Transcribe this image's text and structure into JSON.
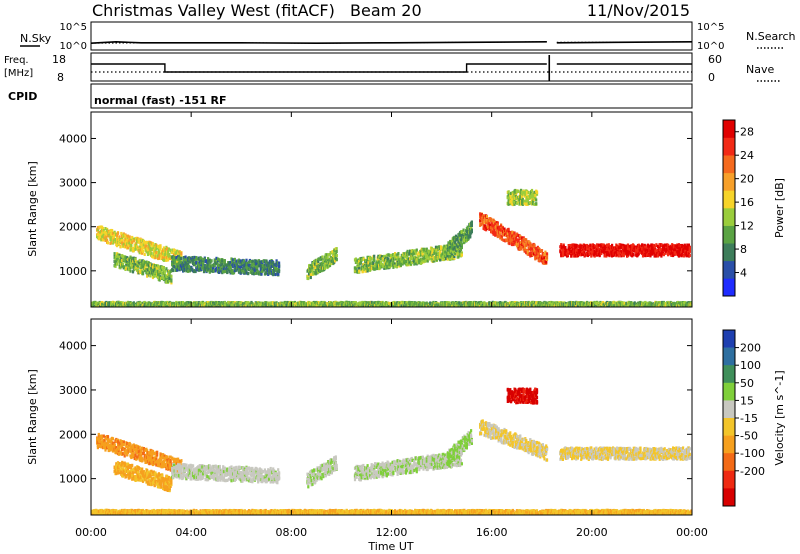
{
  "header": {
    "title": "Christmas Valley West (fitACF)",
    "beam": "Beam 20",
    "date": "11/Nov/2015"
  },
  "noise_panel": {
    "left_label": "N.Sky",
    "right_label": "N.Search",
    "left_ticks": [
      "10^5",
      "10^0"
    ],
    "right_ticks": [
      "10^5",
      "10^0"
    ]
  },
  "freq_panel": {
    "left_label_1": "Freq.",
    "left_label_2": "[MHz]",
    "right_label": "Nave",
    "left_ticks": [
      "18",
      "8"
    ],
    "right_ticks": [
      "60",
      "0"
    ]
  },
  "cpid": {
    "label": "CPID",
    "program": "normal (fast) -151 RF"
  },
  "x_axis": {
    "label": "Time UT",
    "ticks": [
      "00:00",
      "04:00",
      "08:00",
      "12:00",
      "16:00",
      "20:00",
      "00:00"
    ]
  },
  "y_axis": {
    "label": "Slant Range [km]",
    "ticks": [
      "1000",
      "2000",
      "3000",
      "4000"
    ]
  },
  "power_colorbar": {
    "label": "Power [dB]",
    "ticks": [
      "4",
      "8",
      "12",
      "16",
      "20",
      "24",
      "28"
    ],
    "colors": [
      "#1f2cff",
      "#2a4fa8",
      "#3d7d5a",
      "#5aa343",
      "#9acd3c",
      "#f6d42a",
      "#f7a02a",
      "#f56a1e",
      "#f22a16",
      "#e00000"
    ]
  },
  "velocity_colorbar": {
    "label": "Velocity [m s^-1]",
    "ticks": [
      "200",
      "100",
      "50",
      "15",
      "-15",
      "-50",
      "-100",
      "-200"
    ],
    "colors": [
      "#1e3fb0",
      "#2e6fa0",
      "#3f8f5a",
      "#7fcf3a",
      "#c8c8c0",
      "#f3c52a",
      "#f6a01e",
      "#f36a16",
      "#ef2a12",
      "#d80000"
    ]
  },
  "chart_data": [
    {
      "type": "line",
      "panel": "noise",
      "series": [
        {
          "name": "N.Sky",
          "x": [
            0,
            1,
            2,
            3,
            6,
            9,
            12,
            15,
            18.2,
            18.6,
            21,
            24
          ],
          "y": [
            1.2,
            1.5,
            1.3,
            1.3,
            1.3,
            1.2,
            1.3,
            1.4,
            1.5,
            1.3,
            1.4,
            1.5
          ]
        },
        {
          "name": "N.Search",
          "x": [
            0,
            3,
            6,
            9,
            12,
            15,
            18.2,
            18.6,
            21,
            24
          ],
          "y": [
            1.2,
            1.3,
            1.3,
            1.2,
            1.3,
            1.4,
            1.5,
            1.4,
            1.4,
            1.5
          ]
        }
      ],
      "xlim": [
        0,
        24
      ]
    },
    {
      "type": "line",
      "panel": "frequency",
      "series": [
        {
          "name": "Freq.",
          "x": [
            0,
            2.95,
            2.95,
            15,
            15,
            18.2,
            18.6,
            24
          ],
          "y": [
            14.5,
            14.5,
            10.5,
            10.5,
            14.5,
            14.5,
            14.5,
            14.5
          ]
        },
        {
          "name": "Nave",
          "x": [
            0,
            24
          ],
          "y": [
            22,
            22
          ]
        }
      ],
      "xlim": [
        0,
        24
      ]
    },
    {
      "type": "heatmap",
      "panel": "power",
      "xlim": [
        0,
        24
      ],
      "ylim": [
        180,
        4600
      ],
      "zlim": [
        0,
        30
      ],
      "regions": [
        {
          "t_start": 0.2,
          "t_end": 3.6,
          "r_start": 1900,
          "r_end": 1300,
          "value": 16
        },
        {
          "t_start": 0.9,
          "t_end": 3.2,
          "r_start": 1300,
          "r_end": 900,
          "value": 12
        },
        {
          "t_start": 3.2,
          "t_end": 7.5,
          "r_start": 1200,
          "r_end": 1100,
          "value": 8
        },
        {
          "t_start": 8.6,
          "t_end": 9.8,
          "r_start": 1000,
          "r_end": 1400,
          "value": 12
        },
        {
          "t_start": 10.5,
          "t_end": 14.8,
          "r_start": 1150,
          "r_end": 1500,
          "value": 12
        },
        {
          "t_start": 14.2,
          "t_end": 15.2,
          "r_start": 1500,
          "r_end": 2000,
          "value": 10
        },
        {
          "t_start": 15.5,
          "t_end": 18.2,
          "r_start": 2200,
          "r_end": 1300,
          "value": 24
        },
        {
          "t_start": 18.7,
          "t_end": 23.9,
          "r_start": 1500,
          "r_end": 1500,
          "value": 28
        },
        {
          "t_start": 16.6,
          "t_end": 17.8,
          "r_start": 2700,
          "r_end": 2700,
          "value": 14
        },
        {
          "t_start": 0.0,
          "t_end": 24.0,
          "r_start": 260,
          "r_end": 260,
          "value": 12
        }
      ]
    },
    {
      "type": "heatmap",
      "panel": "velocity",
      "xlim": [
        0,
        24
      ],
      "ylim": [
        180,
        4600
      ],
      "zlim": [
        -250,
        250
      ],
      "regions": [
        {
          "t_start": 0.2,
          "t_end": 3.6,
          "r_start": 1900,
          "r_end": 1300,
          "value": -80
        },
        {
          "t_start": 0.9,
          "t_end": 3.2,
          "r_start": 1300,
          "r_end": 900,
          "value": -60
        },
        {
          "t_start": 3.2,
          "t_end": 7.5,
          "r_start": 1200,
          "r_end": 1100,
          "value": 30
        },
        {
          "t_start": 8.6,
          "t_end": 9.8,
          "r_start": 1000,
          "r_end": 1400,
          "value": 40
        },
        {
          "t_start": 10.5,
          "t_end": 14.8,
          "r_start": 1150,
          "r_end": 1500,
          "value": 40
        },
        {
          "t_start": 14.2,
          "t_end": 15.2,
          "r_start": 1500,
          "r_end": 2000,
          "value": 60
        },
        {
          "t_start": 15.5,
          "t_end": 18.2,
          "r_start": 2200,
          "r_end": 1600,
          "value": 0
        },
        {
          "t_start": 18.7,
          "t_end": 23.9,
          "r_start": 1600,
          "r_end": 1600,
          "value": 0
        },
        {
          "t_start": 16.6,
          "t_end": 17.8,
          "r_start": 2900,
          "r_end": 2900,
          "value": -220
        },
        {
          "t_start": 0.0,
          "t_end": 24.0,
          "r_start": 260,
          "r_end": 260,
          "value": -40
        }
      ]
    }
  ]
}
